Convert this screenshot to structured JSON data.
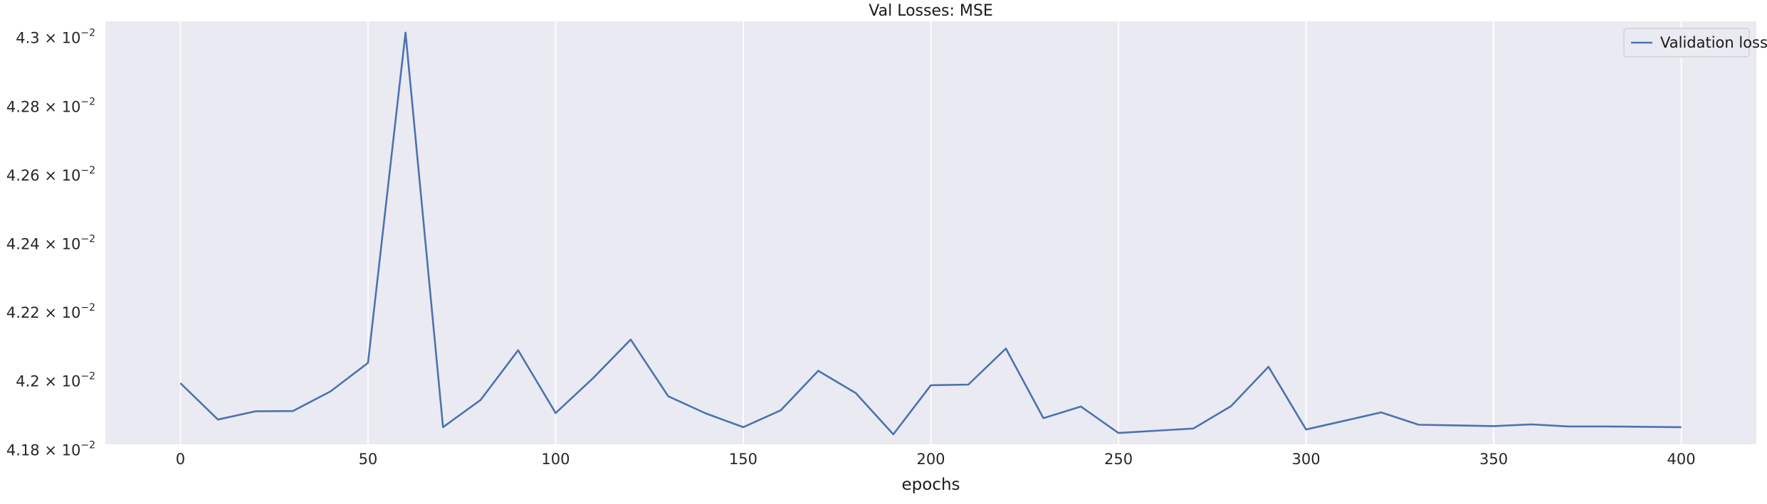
{
  "chart_data": {
    "type": "line",
    "title": "Val Losses:  MSE",
    "xlabel": "epochs",
    "ylabel": "",
    "xlim": [
      -20,
      420
    ],
    "ylim": [
      0.041813,
      0.043045
    ],
    "grid": "vertical",
    "legend_position": "top-right",
    "background_color": "#eaeaf2",
    "grid_color": "#ffffff",
    "x_ticks": [
      0,
      50,
      100,
      150,
      200,
      250,
      300,
      350,
      400
    ],
    "x_tick_labels": [
      "0",
      "50",
      "100",
      "150",
      "200",
      "250",
      "300",
      "350",
      "400"
    ],
    "y_ticks": [
      {
        "value": 0.0418,
        "mantissa": "4.18",
        "base": "10",
        "exponent": "−2"
      },
      {
        "value": 0.042,
        "mantissa": "4.2",
        "base": "10",
        "exponent": "−2"
      },
      {
        "value": 0.0422,
        "mantissa": "4.22",
        "base": "10",
        "exponent": "−2"
      },
      {
        "value": 0.0424,
        "mantissa": "4.24",
        "base": "10",
        "exponent": "−2"
      },
      {
        "value": 0.0426,
        "mantissa": "4.26",
        "base": "10",
        "exponent": "−2"
      },
      {
        "value": 0.0428,
        "mantissa": "4.28",
        "base": "10",
        "exponent": "−2"
      },
      {
        "value": 0.043,
        "mantissa": "4.3",
        "base": "10",
        "exponent": "−2"
      }
    ],
    "series": [
      {
        "name": "Validation loss",
        "color": "#4c72b0",
        "x": [
          0,
          10,
          20,
          30,
          40,
          50,
          60,
          70,
          80,
          90,
          100,
          110,
          120,
          130,
          140,
          150,
          160,
          170,
          180,
          190,
          200,
          210,
          220,
          230,
          240,
          250,
          270,
          280,
          290,
          300,
          310,
          320,
          330,
          340,
          350,
          360,
          370,
          380,
          390,
          400
        ],
        "y": [
          0.041991,
          0.041885,
          0.041909,
          0.04191,
          0.041967,
          0.04205,
          0.043012,
          0.041863,
          0.041942,
          0.042087,
          0.041904,
          0.042006,
          0.042118,
          0.041953,
          0.041903,
          0.041863,
          0.041912,
          0.042027,
          0.041962,
          0.041842,
          0.041985,
          0.041987,
          0.042092,
          0.041889,
          0.041923,
          0.041846,
          0.041859,
          0.041924,
          0.042039,
          0.041856,
          0.041881,
          0.041906,
          0.04187,
          0.041868,
          0.041866,
          0.041871,
          0.041865,
          0.041865,
          0.041864,
          0.041863
        ]
      }
    ]
  }
}
